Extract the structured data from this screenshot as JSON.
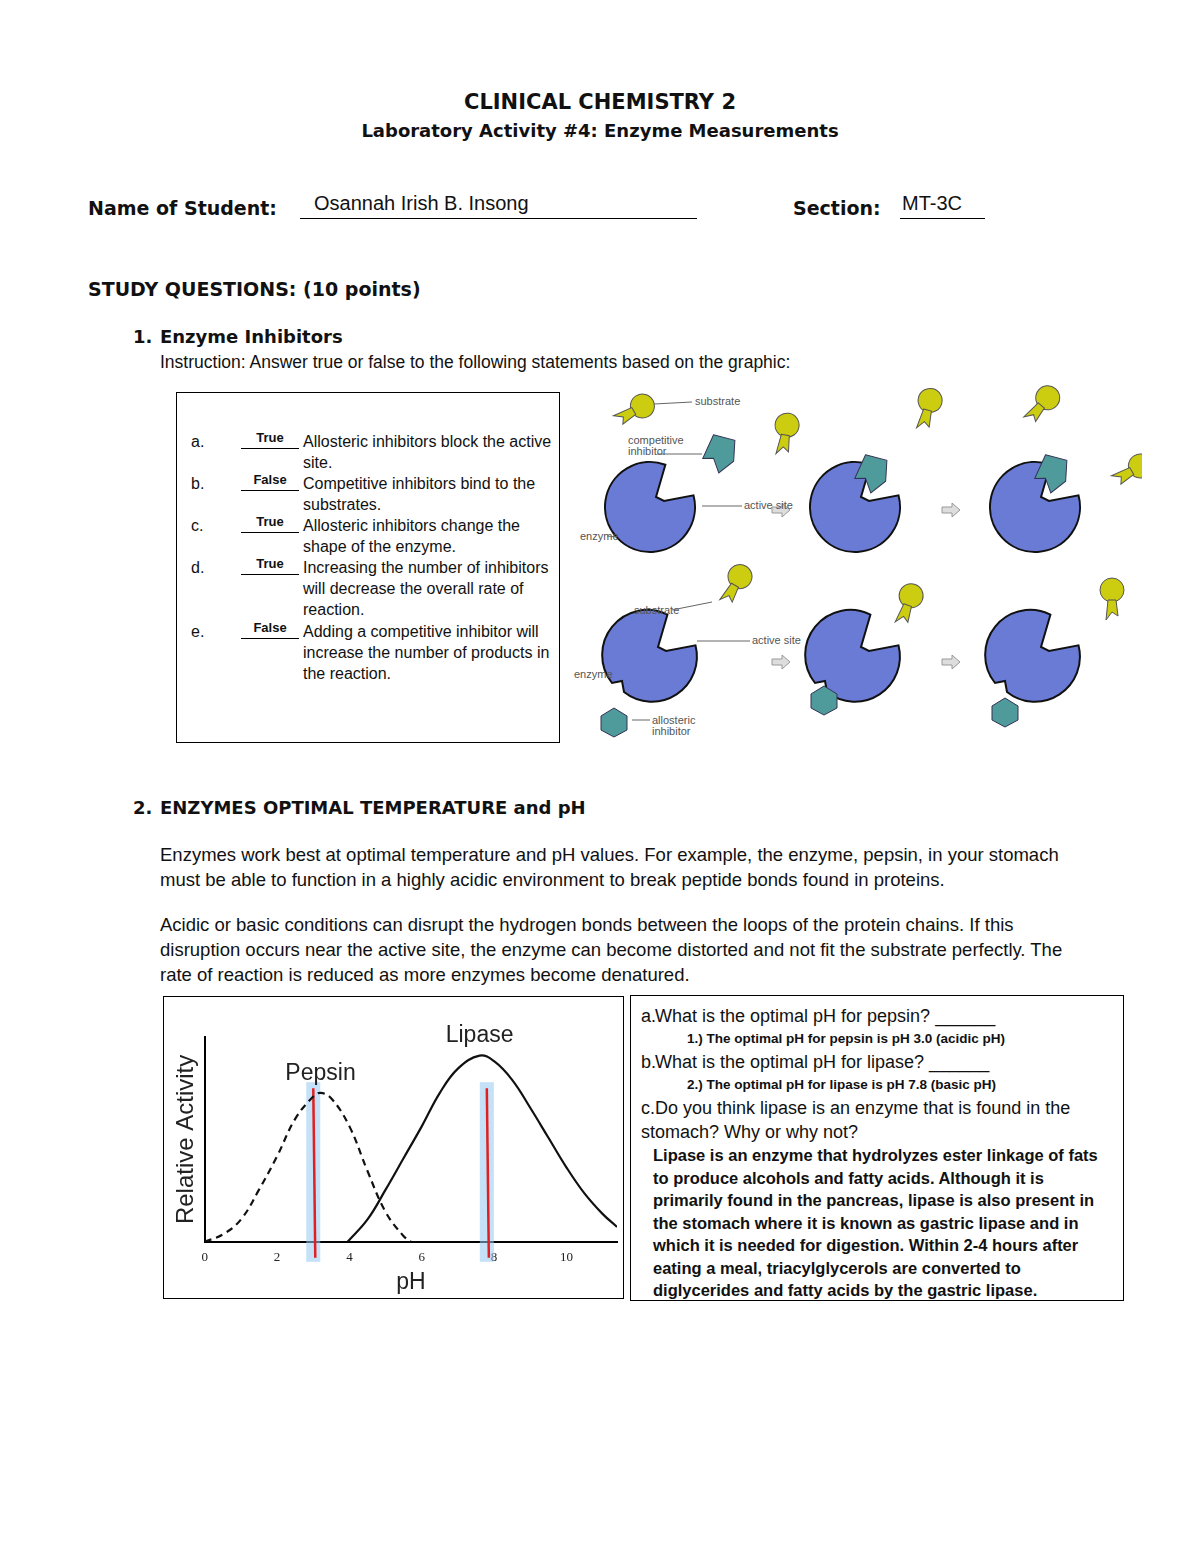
{
  "header": {
    "course": "CLINICAL CHEMISTRY 2",
    "activity": "Laboratory Activity #4: Enzyme Measurements",
    "name_label": "Name of Student:",
    "name": "Osannah Irish B. Insong",
    "section_label": "Section:",
    "section": "MT-3C"
  },
  "study_questions": "STUDY QUESTIONS: (10 points)",
  "q1": {
    "number": "1.",
    "title": "Enzyme Inhibitors",
    "instruction": "Instruction: Answer true or false to the following statements based on the graphic:",
    "items": [
      {
        "letter": "a.",
        "answer": "True",
        "text": "Allosteric inhibitors block the active site."
      },
      {
        "letter": "b.",
        "answer": "False",
        "text": "Competitive inhibitors bind to the substrates."
      },
      {
        "letter": "c.",
        "answer": "True",
        "text": "Allosteric inhibitors change the shape of the enzyme."
      },
      {
        "letter": "d.",
        "answer": "True",
        "text": "Increasing the number of inhibitors will decrease the overall rate of reaction."
      },
      {
        "letter": "e.",
        "answer": "False",
        "text": "Adding a competitive inhibitor will increase the number of products in the reaction."
      }
    ]
  },
  "diagram": {
    "top": {
      "substrate": "substrate",
      "inhibitor": "competitive inhibitor",
      "active_site": "active site",
      "enzyme": "enzyme"
    },
    "bottom": {
      "substrate": "substrate",
      "active_site": "active site",
      "enzyme": "enzyme",
      "inhibitor": "allosteric inhibitor"
    }
  },
  "q2": {
    "number": "2.",
    "title": "ENZYMES OPTIMAL TEMPERATURE and pH",
    "paragraphs": [
      "Enzymes work best at optimal temperature and pH values. For example, the enzyme, pepsin, in your stomach must be able to function in a highly acidic environment to break peptide bonds found in proteins.",
      "Acidic or basic conditions can disrupt the hydrogen bonds between the loops of the protein chains.  If this disruption occurs near the active site, the enzyme can become distorted and not fit the substrate perfectly.  The rate of reaction is reduced as more enzymes become denatured."
    ],
    "questions": [
      {
        "letter": "a.",
        "text": "What is the optimal pH for pepsin? ______",
        "answer": "1.) The optimal pH for pepsin is pH 3.0 (acidic pH)"
      },
      {
        "letter": "b.",
        "text": "What is the optimal pH for lipase? ______",
        "answer": "2.) The optimal pH for lipase is pH 7.8 (basic pH)"
      },
      {
        "letter": "c.",
        "text": "Do you think lipase is an enzyme that is found in the stomach? Why or why not?",
        "answer": "Lipase is an enzyme that hydrolyzes ester linkage of fats to produce alcohols and fatty acids. Although it is primarily found in the pancreas,  lipase is also present in the stomach where it is known as gastric lipase and in which it is needed for digestion. Within 2-4 hours after eating a meal, triacylglycerols are converted to diglycerides and fatty acids by the gastric lipase."
      }
    ]
  },
  "chart_data": {
    "type": "line",
    "x_label": "pH",
    "y_label": "Relative Activity",
    "series": [
      {
        "name": "Pepsin",
        "color": "#111111",
        "line_style": "dashed",
        "x": [
          0,
          0.5,
          1,
          1.5,
          2,
          2.5,
          3,
          3.2,
          3.5,
          4,
          4.5,
          5,
          5.5,
          5.7
        ],
        "values": [
          0,
          0.04,
          0.12,
          0.28,
          0.46,
          0.66,
          0.78,
          0.8,
          0.77,
          0.62,
          0.38,
          0.16,
          0.03,
          0
        ]
      },
      {
        "name": "Lipase",
        "color": "#111111",
        "line_style": "solid",
        "x": [
          3.95,
          4.5,
          5,
          5.5,
          6,
          6.5,
          7,
          7.6,
          8,
          8.5,
          9,
          9.5,
          10,
          10.5,
          11,
          11.4
        ],
        "values": [
          0,
          0.12,
          0.28,
          0.45,
          0.62,
          0.8,
          0.93,
          1.0,
          0.97,
          0.87,
          0.72,
          0.56,
          0.4,
          0.26,
          0.15,
          0.08
        ]
      }
    ],
    "xlim": [
      0,
      11.4
    ],
    "xticks": [
      0,
      2,
      4,
      6,
      8,
      10
    ],
    "ylim": [
      0,
      1.1
    ],
    "grid": false,
    "tick_labels": "x",
    "marked_x": [
      3.0,
      7.8
    ]
  }
}
